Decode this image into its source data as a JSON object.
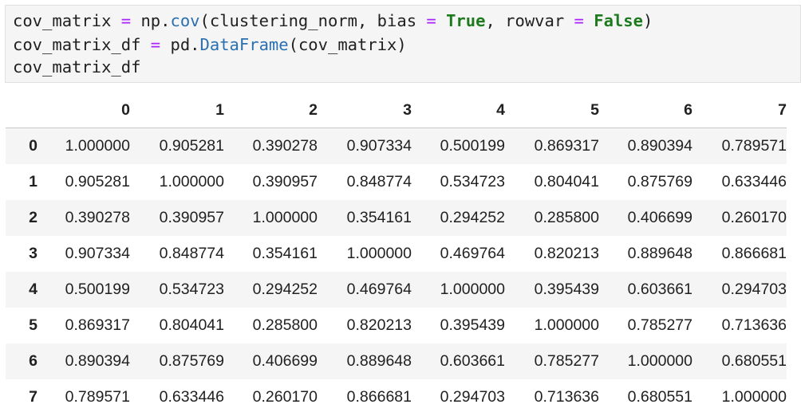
{
  "code_cell": {
    "line1": {
      "t1": "cov_matrix ",
      "op1": "=",
      "t2": " np.",
      "fn1": "cov",
      "t3": "(clustering_norm, bias ",
      "op2": "=",
      "t4": " ",
      "kw1": "True",
      "t5": ", rowvar ",
      "op3": "=",
      "t6": " ",
      "kw2": "False",
      "t7": ")"
    },
    "line2": {
      "t1": "cov_matrix_df ",
      "op1": "=",
      "t2": " pd.",
      "fn1": "DataFrame",
      "t3": "(cov_matrix)"
    },
    "line3": {
      "t1": "cov_matrix_df"
    }
  },
  "dataframe": {
    "columns": [
      "0",
      "1",
      "2",
      "3",
      "4",
      "5",
      "6",
      "7"
    ],
    "index": [
      "0",
      "1",
      "2",
      "3",
      "4",
      "5",
      "6",
      "7"
    ],
    "rows": [
      [
        "1.000000",
        "0.905281",
        "0.390278",
        "0.907334",
        "0.500199",
        "0.869317",
        "0.890394",
        "0.789571"
      ],
      [
        "0.905281",
        "1.000000",
        "0.390957",
        "0.848774",
        "0.534723",
        "0.804041",
        "0.875769",
        "0.633446"
      ],
      [
        "0.390278",
        "0.390957",
        "1.000000",
        "0.354161",
        "0.294252",
        "0.285800",
        "0.406699",
        "0.260170"
      ],
      [
        "0.907334",
        "0.848774",
        "0.354161",
        "1.000000",
        "0.469764",
        "0.820213",
        "0.889648",
        "0.866681"
      ],
      [
        "0.500199",
        "0.534723",
        "0.294252",
        "0.469764",
        "1.000000",
        "0.395439",
        "0.603661",
        "0.294703"
      ],
      [
        "0.869317",
        "0.804041",
        "0.285800",
        "0.820213",
        "0.395439",
        "1.000000",
        "0.785277",
        "0.713636"
      ],
      [
        "0.890394",
        "0.875769",
        "0.406699",
        "0.889648",
        "0.603661",
        "0.785277",
        "1.000000",
        "0.680551"
      ],
      [
        "0.789571",
        "0.633446",
        "0.260170",
        "0.866681",
        "0.294703",
        "0.713636",
        "0.680551",
        "1.000000"
      ]
    ]
  },
  "colors": {
    "code_background": "#f5f5f5",
    "operator": "#aa22ff",
    "function": "#2a6fb0",
    "keyword": "#1e7a1e",
    "striped_row": "#f5f5f5"
  }
}
